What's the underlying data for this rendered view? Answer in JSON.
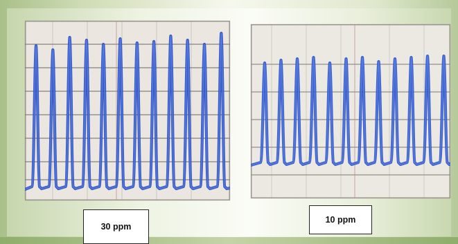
{
  "panels": [
    {
      "label": "30 ppm",
      "peak_count": 12,
      "colors": {
        "trace": "#2a4fc4",
        "paper": "#ebe7e0",
        "grid": "#7a7672"
      }
    },
    {
      "label": "10 ppm",
      "peak_count": 12,
      "colors": {
        "trace": "#2d55c9",
        "paper": "#ece8e2",
        "grid": "#8a8682"
      }
    }
  ]
}
